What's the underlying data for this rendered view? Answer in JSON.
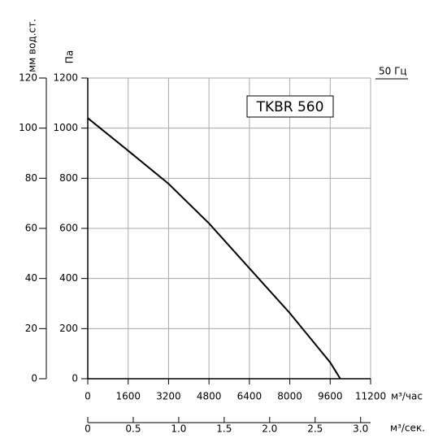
{
  "chart_data": {
    "type": "line",
    "ylabel": "Па",
    "y2label": "мм вод.ст.",
    "xlabel": "м³/час",
    "x2label": "м³/сек.",
    "annotation": "50 Гц",
    "x": [
      0,
      1600,
      3200,
      4800,
      6400,
      8000,
      9600,
      10000
    ],
    "series": [
      {
        "name": "TKBR 560",
        "color": "#000000",
        "values": [
          1040,
          910,
          778,
          620,
          441,
          262,
          65,
          0
        ]
      }
    ],
    "xlim": [
      0,
      11200
    ],
    "xticks": [
      0,
      1600,
      3200,
      4800,
      6400,
      8000,
      9600,
      11200
    ],
    "ylim": [
      0,
      1200
    ],
    "yticks": [
      0,
      200,
      400,
      600,
      800,
      1000,
      1200
    ],
    "y2lim": [
      0,
      120
    ],
    "y2ticks": [
      0,
      20,
      40,
      60,
      80,
      100,
      120
    ],
    "x2lim": [
      0,
      3.11
    ],
    "x2ticks": [
      0,
      0.5,
      {
        "value": 1,
        "label": "1.0"
      },
      1.5,
      {
        "value": 2,
        "label": "2.0"
      },
      2.5,
      {
        "value": 3,
        "label": "3.0"
      }
    ],
    "grid": true
  }
}
